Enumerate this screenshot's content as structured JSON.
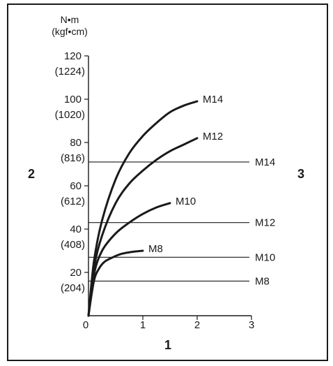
{
  "chart_data": {
    "type": "line",
    "y_unit_line1": "N•m",
    "y_unit_line2": "(kgf•cm)",
    "xlim": [
      0,
      3
    ],
    "ylim": [
      0,
      120
    ],
    "x_ticks": [
      "0",
      "1",
      "2",
      "3"
    ],
    "y_ticks": [
      {
        "value": 20,
        "nm": "20",
        "kgf": "(204)"
      },
      {
        "value": 40,
        "nm": "40",
        "kgf": "(408)"
      },
      {
        "value": 60,
        "nm": "60",
        "kgf": "(612)"
      },
      {
        "value": 80,
        "nm": "80",
        "kgf": "(816)"
      },
      {
        "value": 100,
        "nm": "100",
        "kgf": "(1020)"
      },
      {
        "value": 120,
        "nm": "120",
        "kgf": "(1224)"
      }
    ],
    "series": [
      {
        "name": "M14",
        "x": [
          0,
          0.1,
          0.25,
          0.5,
          0.75,
          1.0,
          1.25,
          1.5,
          1.75,
          2.0
        ],
        "y": [
          0,
          25,
          44,
          63,
          75,
          83,
          89,
          94,
          97,
          99
        ]
      },
      {
        "name": "M12",
        "x": [
          0,
          0.1,
          0.25,
          0.5,
          0.75,
          1.0,
          1.25,
          1.5,
          1.75,
          2.0
        ],
        "y": [
          0,
          22,
          37,
          52,
          61,
          67,
          72,
          76,
          79,
          82
        ]
      },
      {
        "name": "M10",
        "x": [
          0,
          0.1,
          0.25,
          0.5,
          0.75,
          1.0,
          1.25,
          1.5
        ],
        "y": [
          0,
          19,
          30,
          38,
          43,
          47,
          50,
          52
        ]
      },
      {
        "name": "M8",
        "x": [
          0,
          0.1,
          0.2,
          0.3,
          0.45,
          0.6,
          0.8,
          1.0
        ],
        "y": [
          0,
          16,
          22,
          25,
          27,
          28.5,
          29.5,
          30
        ]
      }
    ],
    "reference_lines": [
      {
        "name": "M14",
        "y": 71
      },
      {
        "name": "M12",
        "y": 43
      },
      {
        "name": "M10",
        "y": 27
      },
      {
        "name": "M8",
        "y": 16
      }
    ],
    "callouts": {
      "x_axis": "1",
      "y_axis": "2",
      "ref_group": "3"
    }
  }
}
